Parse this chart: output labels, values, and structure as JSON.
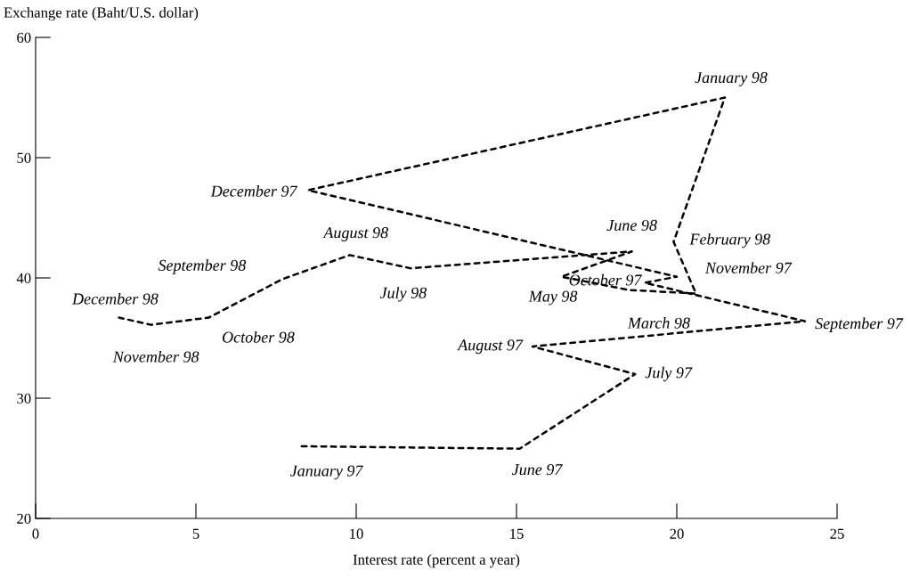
{
  "chart_data": {
    "type": "line",
    "xlabel": "Interest rate (percent a year)",
    "ylabel": "Exchange rate (Baht/U.S. dollar)",
    "x": [
      8.3,
      15.1,
      18.7,
      15.5,
      24.0,
      19.0,
      20.0,
      8.5,
      21.5,
      19.9,
      20.6,
      18.5,
      16.4,
      18.6,
      11.7,
      9.8,
      7.7,
      5.4,
      3.6,
      2.6
    ],
    "series": [
      {
        "color": "#000000",
        "values": [
          26.0,
          25.8,
          32.0,
          34.3,
          36.4,
          39.6,
          40.1,
          47.3,
          55.0,
          43.0,
          38.7,
          39.0,
          40.1,
          42.2,
          40.8,
          41.9,
          39.9,
          36.7,
          36.1,
          36.7
        ]
      }
    ],
    "xlim": [
      0,
      25
    ],
    "xticks": [
      0,
      5,
      10,
      15,
      20,
      25
    ],
    "ylim": [
      20,
      60
    ],
    "yticks": [
      20,
      30,
      40,
      50,
      60
    ],
    "grid": false,
    "legend": false,
    "marker": "none",
    "line_style": "dashed",
    "annotations": [
      {
        "text": "January 97",
        "x": 8.3,
        "y": 26.0
      },
      {
        "text": "June 97",
        "x": 15.1,
        "y": 25.8
      },
      {
        "text": "July 97",
        "x": 18.7,
        "y": 32.0
      },
      {
        "text": "August 97",
        "x": 15.5,
        "y": 34.3
      },
      {
        "text": "September 97",
        "x": 24.0,
        "y": 36.4
      },
      {
        "text": "October 97",
        "x": 19.0,
        "y": 39.6
      },
      {
        "text": "November 97",
        "x": 20.0,
        "y": 40.1
      },
      {
        "text": "December 97",
        "x": 8.5,
        "y": 47.3
      },
      {
        "text": "January 98",
        "x": 21.5,
        "y": 55.0
      },
      {
        "text": "February 98",
        "x": 19.9,
        "y": 43.0
      },
      {
        "text": "March 98",
        "x": 20.6,
        "y": 38.7
      },
      {
        "text": "May 98",
        "x": 16.4,
        "y": 40.1
      },
      {
        "text": "June 98",
        "x": 18.6,
        "y": 42.2
      },
      {
        "text": "July 98",
        "x": 11.7,
        "y": 40.8
      },
      {
        "text": "August 98",
        "x": 9.8,
        "y": 41.9
      },
      {
        "text": "September 98",
        "x": 7.7,
        "y": 39.9
      },
      {
        "text": "October 98",
        "x": 5.4,
        "y": 36.7
      },
      {
        "text": "November 98",
        "x": 3.6,
        "y": 36.1
      },
      {
        "text": "December 98",
        "x": 2.6,
        "y": 36.7
      }
    ]
  }
}
